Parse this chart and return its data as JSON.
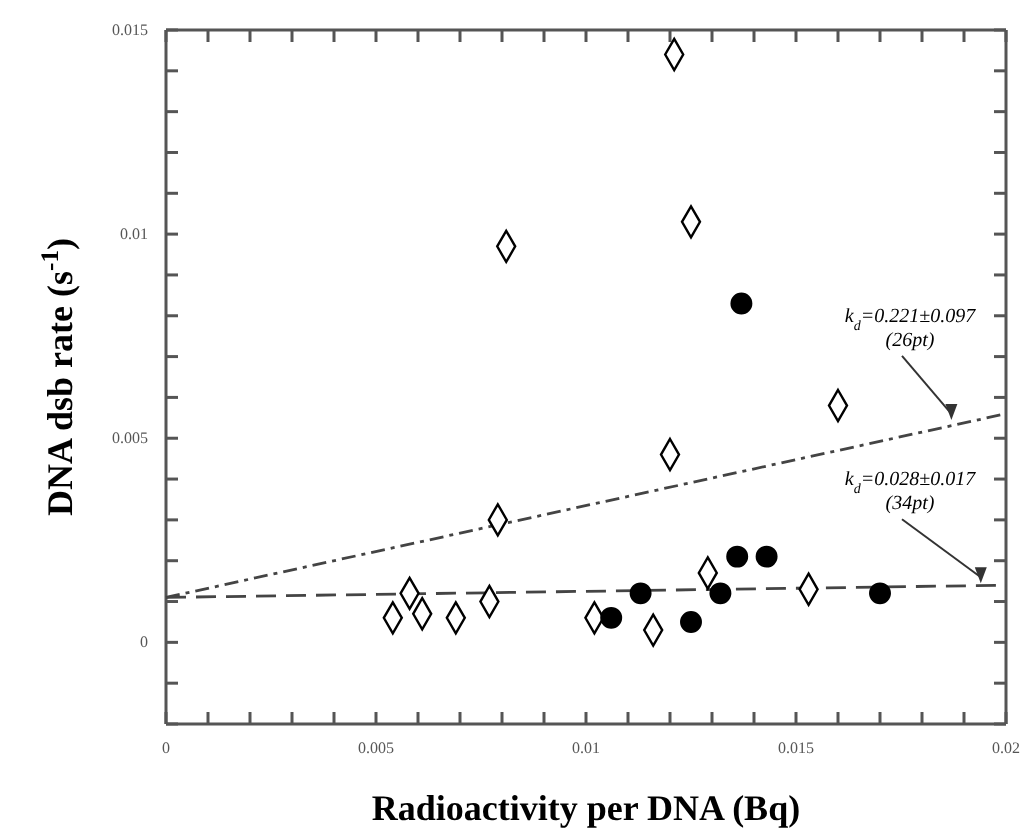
{
  "chart_data": {
    "type": "scatter",
    "xlabel": "Radioactivity per DNA (Bq)",
    "ylabel": "DNA dsb rate (s$^{-1}$)",
    "xlim": [
      0,
      0.02
    ],
    "ylim": [
      -0.002,
      0.015
    ],
    "xticks": [
      {
        "value": 0,
        "label": "0"
      },
      {
        "value": 0.001,
        "label": null
      },
      {
        "value": 0.002,
        "label": null
      },
      {
        "value": 0.003,
        "label": null
      },
      {
        "value": 0.004,
        "label": null
      },
      {
        "value": 0.005,
        "label": "0.005"
      },
      {
        "value": 0.006,
        "label": null
      },
      {
        "value": 0.007,
        "label": null
      },
      {
        "value": 0.008,
        "label": null
      },
      {
        "value": 0.009,
        "label": null
      },
      {
        "value": 0.01,
        "label": "0.01"
      },
      {
        "value": 0.011,
        "label": null
      },
      {
        "value": 0.012,
        "label": null
      },
      {
        "value": 0.013,
        "label": null
      },
      {
        "value": 0.014,
        "label": null
      },
      {
        "value": 0.015,
        "label": "0.015"
      },
      {
        "value": 0.016,
        "label": null
      },
      {
        "value": 0.017,
        "label": null
      },
      {
        "value": 0.018,
        "label": null
      },
      {
        "value": 0.019,
        "label": null
      },
      {
        "value": 0.02,
        "label": "0.02"
      }
    ],
    "yticks": [
      {
        "value": -0.002,
        "label": null
      },
      {
        "value": -0.001,
        "label": null
      },
      {
        "value": 0,
        "label": "0"
      },
      {
        "value": 0.001,
        "label": null
      },
      {
        "value": 0.002,
        "label": null
      },
      {
        "value": 0.003,
        "label": null
      },
      {
        "value": 0.004,
        "label": null
      },
      {
        "value": 0.005,
        "label": "0.005"
      },
      {
        "value": 0.006,
        "label": null
      },
      {
        "value": 0.007,
        "label": null
      },
      {
        "value": 0.008,
        "label": null
      },
      {
        "value": 0.009,
        "label": null
      },
      {
        "value": 0.01,
        "label": "0.01"
      },
      {
        "value": 0.011,
        "label": null
      },
      {
        "value": 0.012,
        "label": null
      },
      {
        "value": 0.013,
        "label": null
      },
      {
        "value": 0.014,
        "label": null
      },
      {
        "value": 0.015,
        "label": "0.015"
      }
    ],
    "grid": false,
    "series": [
      {
        "type": "scatter",
        "marker": "diamond",
        "color": "#000000",
        "x": [
          0.0121,
          0.0125,
          0.0081,
          0.016,
          0.012,
          0.0079,
          0.0054,
          0.0058,
          0.0061,
          0.0069,
          0.0077,
          0.0102,
          0.0116,
          0.0129,
          0.0153
        ],
        "values": [
          0.0144,
          0.0103,
          0.0097,
          0.0058,
          0.0046,
          0.003,
          0.0006,
          0.0012,
          0.0007,
          0.0006,
          0.001,
          0.0006,
          0.0003,
          0.0017,
          0.0013
        ]
      },
      {
        "type": "scatter",
        "marker": "circle",
        "color": "#000000",
        "x": [
          0.0137,
          0.0106,
          0.0113,
          0.0125,
          0.0132,
          0.0136,
          0.0143,
          0.017
        ],
        "values": [
          0.0083,
          0.0006,
          0.0012,
          0.0005,
          0.0012,
          0.0021,
          0.0021,
          0.0012
        ]
      },
      {
        "type": "line",
        "line_style": "dotted",
        "color": "#444444",
        "x": [
          0,
          0.02
        ],
        "values": [
          0.0011,
          0.0056
        ]
      },
      {
        "type": "line",
        "line_style": "dashed",
        "color": "#444444",
        "x": [
          0,
          0.02
        ],
        "values": [
          0.0011,
          0.0014
        ]
      }
    ],
    "annotations": [
      {
        "text": "k$_{d}$=0.221±0.097\n(26pt)",
        "x": 0.0187,
        "y": 0.0054
      },
      {
        "text": "k$_{d}$=0.028±0.017\n(34pt)",
        "x": 0.0194,
        "y": 0.0014
      }
    ]
  }
}
